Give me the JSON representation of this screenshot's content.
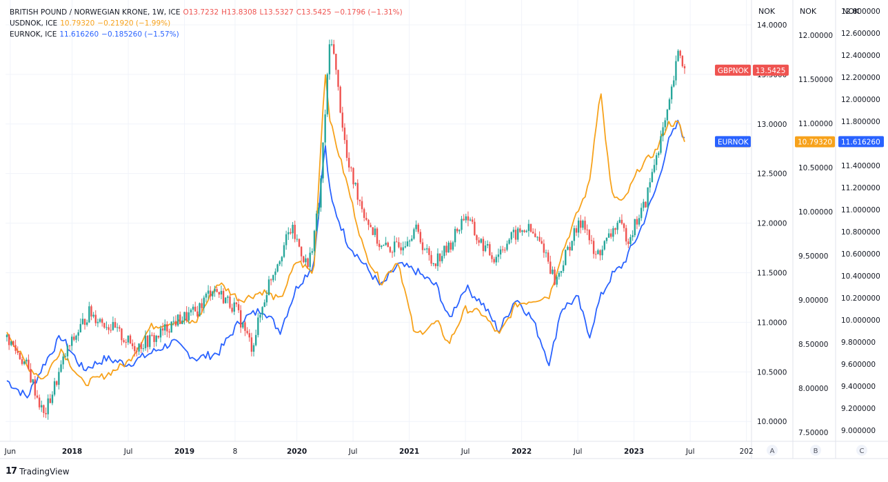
{
  "legend": {
    "gbp": {
      "name": "BRITISH POUND / NORWEGIAN KRONE, 1W, ICE",
      "o": "O13.7232",
      "h": "H13.8308",
      "l": "L13.5327",
      "c": "C13.5425",
      "chg": "−0.1796 (−1.31%)"
    },
    "usd": {
      "name": "USDNOK, ICE",
      "val": "10.79320",
      "chg": "−0.21920 (−1.99%)"
    },
    "eur": {
      "name": "EURNOK, ICE",
      "val": "11.616260",
      "chg": "−0.185260 (−1.57%)"
    }
  },
  "colors": {
    "up": "#26a69a",
    "down": "#ef5350",
    "usd": "#f7a21b",
    "eur": "#2962ff",
    "tag_gbp": "#ef5350",
    "tag_usd": "#f7a21b",
    "tag_eur": "#2962ff",
    "grid": "#f0f3fa",
    "border": "#e0e3eb"
  },
  "axes": {
    "a": {
      "head": "NOK",
      "ticks": [
        "14.0000",
        "13.5000",
        "13.0000",
        "12.5000",
        "12.0000",
        "11.5000",
        "11.0000",
        "10.5000",
        "10.0000"
      ],
      "button": "A"
    },
    "b": {
      "head": "NOK",
      "ticks": [
        "12.00000",
        "11.50000",
        "11.00000",
        "10.50000",
        "10.00000",
        "9.50000",
        "9.00000",
        "8.50000",
        "8.00000",
        "7.50000"
      ],
      "button": "B"
    },
    "c": {
      "head": "NOK",
      "ticks": [
        "12.800000",
        "12.600000",
        "12.400000",
        "12.200000",
        "12.000000",
        "11.800000",
        "11.600000",
        "11.400000",
        "11.200000",
        "11.000000",
        "10.800000",
        "10.600000",
        "10.400000",
        "10.200000",
        "10.000000",
        "9.800000",
        "9.600000",
        "9.400000",
        "9.200000",
        "9.000000"
      ],
      "button": "C"
    }
  },
  "time_axis": [
    "Jun",
    "2018",
    "Jul",
    "2019",
    "8",
    "2020",
    "Jul",
    "2021",
    "Jul",
    "2022",
    "Jul",
    "2023",
    "Jul",
    "202"
  ],
  "tags": {
    "gbp_name": "GBPNOK",
    "gbp_value": "13.5425",
    "usd_name": "USDNOK",
    "usd_value": "10.79320",
    "eur_name": "EURNOK",
    "eur_value": "11.616260"
  },
  "brand": "TradingView",
  "chart_data": {
    "type": "line",
    "x_axis": "weekly, Jun 2017 – Jun 2023",
    "series": [
      {
        "name": "BRITISH POUND / NORWEGIAN KRONE",
        "axis": "A",
        "style": "candles",
        "x": [
          2017.42,
          2017.6,
          2017.75,
          2017.95,
          2018.15,
          2018.35,
          2018.55,
          2018.75,
          2018.9,
          2019.1,
          2019.25,
          2019.45,
          2019.6,
          2019.75,
          2019.95,
          2020.1,
          2020.2,
          2020.3,
          2020.45,
          2020.6,
          2020.75,
          2020.9,
          2021.05,
          2021.2,
          2021.35,
          2021.5,
          2021.6,
          2021.75,
          2021.9,
          2022.05,
          2022.2,
          2022.3,
          2022.45,
          2022.55,
          2022.65,
          2022.75,
          2022.85,
          2022.95,
          2023.1,
          2023.2,
          2023.3,
          2023.4,
          2023.45
        ],
        "values": [
          10.85,
          10.55,
          10.05,
          10.7,
          11.1,
          10.95,
          10.75,
          10.85,
          11.0,
          11.1,
          11.35,
          11.15,
          10.75,
          11.4,
          11.95,
          11.55,
          12.2,
          13.95,
          12.6,
          12.1,
          11.75,
          11.75,
          11.95,
          11.6,
          11.75,
          12.1,
          11.85,
          11.65,
          11.85,
          11.95,
          11.75,
          11.4,
          11.85,
          12.05,
          11.65,
          11.8,
          12.0,
          11.85,
          12.2,
          12.7,
          13.1,
          13.75,
          13.54
        ]
      },
      {
        "name": "USDNOK",
        "axis": "B",
        "style": "line",
        "x": [
          2017.42,
          2017.6,
          2017.75,
          2017.9,
          2018.1,
          2018.3,
          2018.5,
          2018.7,
          2018.9,
          2019.1,
          2019.3,
          2019.5,
          2019.7,
          2019.85,
          2020.0,
          2020.15,
          2020.25,
          2020.3,
          2020.45,
          2020.6,
          2020.75,
          2020.9,
          2021.05,
          2021.25,
          2021.35,
          2021.5,
          2021.65,
          2021.8,
          2021.95,
          2022.1,
          2022.25,
          2022.35,
          2022.5,
          2022.6,
          2022.7,
          2022.8,
          2022.9,
          2023.05,
          2023.2,
          2023.3,
          2023.4,
          2023.45
        ],
        "values": [
          8.65,
          8.25,
          8.1,
          8.45,
          8.05,
          8.15,
          8.3,
          8.7,
          8.75,
          8.75,
          9.2,
          9.0,
          9.1,
          9.0,
          9.45,
          9.3,
          11.6,
          11.0,
          10.3,
          9.55,
          9.2,
          9.45,
          8.6,
          8.75,
          8.5,
          8.9,
          8.85,
          8.6,
          8.95,
          9.0,
          9.05,
          9.5,
          10.0,
          10.3,
          11.4,
          10.2,
          10.1,
          10.5,
          10.7,
          11.0,
          11.0,
          10.79
        ]
      },
      {
        "name": "EURNOK",
        "axis": "C",
        "style": "line",
        "x": [
          2017.42,
          2017.6,
          2017.75,
          2017.9,
          2018.1,
          2018.3,
          2018.5,
          2018.7,
          2018.9,
          2019.1,
          2019.3,
          2019.5,
          2019.7,
          2019.85,
          2020.0,
          2020.15,
          2020.25,
          2020.3,
          2020.45,
          2020.6,
          2020.75,
          2020.9,
          2021.05,
          2021.25,
          2021.35,
          2021.5,
          2021.65,
          2021.8,
          2021.95,
          2022.1,
          2022.25,
          2022.35,
          2022.5,
          2022.6,
          2022.7,
          2022.8,
          2022.9,
          2023.05,
          2023.2,
          2023.3,
          2023.4,
          2023.45
        ],
        "values": [
          9.45,
          9.3,
          9.6,
          9.85,
          9.55,
          9.65,
          9.6,
          9.7,
          9.8,
          9.65,
          9.7,
          10.0,
          10.1,
          9.9,
          10.3,
          10.5,
          11.6,
          11.1,
          10.7,
          10.5,
          10.3,
          10.5,
          10.45,
          10.3,
          10.0,
          10.3,
          10.15,
          9.9,
          10.2,
          10.0,
          9.6,
          10.1,
          10.2,
          9.85,
          10.2,
          10.4,
          10.5,
          10.8,
          11.2,
          11.6,
          11.8,
          11.62
        ]
      }
    ],
    "axis_ranges": {
      "A": [
        9.8,
        14.25
      ],
      "B": [
        7.4,
        12.4
      ],
      "C": [
        8.9,
        12.9
      ]
    },
    "grid": true
  }
}
